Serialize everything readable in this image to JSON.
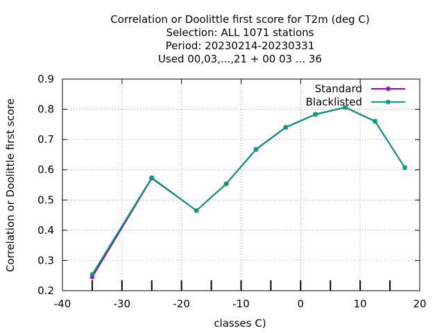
{
  "chart_data": {
    "type": "line",
    "title_lines": [
      "Correlation or Doolittle first score  for T2m (deg C)",
      "Selection: ALL   1071 stations",
      "Period: 20230214-20230331",
      "Used  00,03,...,21  + 00 03 ... 36"
    ],
    "xlabel": "classes C)",
    "ylabel": "Correlation or Doolittle first score",
    "xlim": [
      -40,
      20
    ],
    "ylim": [
      0.2,
      0.9
    ],
    "xticks": [
      -40,
      -30,
      -20,
      -10,
      0,
      10,
      20
    ],
    "yticks": [
      0.2,
      0.3,
      0.4,
      0.5,
      0.6,
      0.7,
      0.8,
      0.9
    ],
    "xtick_labels": [
      "-40",
      "-30",
      "-20",
      "-10",
      "0",
      "10",
      "20"
    ],
    "ytick_labels": [
      "0.2",
      "0.3",
      "0.4",
      "0.5",
      "0.6",
      "0.7",
      "0.8",
      "0.9"
    ],
    "bottom_bars": [
      -35,
      -30,
      -25,
      -20,
      -15,
      -10,
      -5,
      0,
      5,
      10,
      15
    ],
    "grid": true,
    "legend_position": "top-right",
    "series": [
      {
        "name": "Standard",
        "color": "#9400d3",
        "x": [
          -35,
          -25,
          -17.5,
          -12.5,
          -7.5,
          -2.5,
          2.5,
          7.5,
          12.5,
          17.5
        ],
        "values": [
          0.245,
          0.572,
          0.465,
          0.553,
          0.667,
          0.74,
          0.783,
          0.806,
          0.76,
          0.607
        ]
      },
      {
        "name": "Blacklisted",
        "color": "#009e73",
        "x": [
          -35,
          -25,
          -17.5,
          -12.5,
          -7.5,
          -2.5,
          2.5,
          7.5,
          12.5,
          17.5
        ],
        "values": [
          0.254,
          0.574,
          0.465,
          0.554,
          0.668,
          0.741,
          0.784,
          0.807,
          0.761,
          0.607
        ]
      }
    ]
  }
}
